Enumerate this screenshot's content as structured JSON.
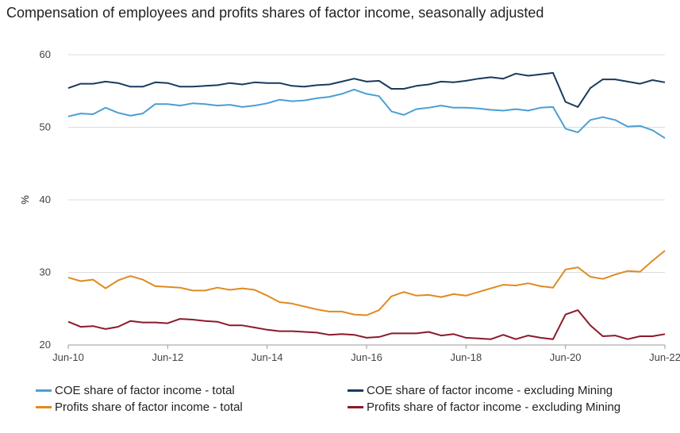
{
  "chart_data": {
    "type": "line",
    "title": "Compensation of employees and profits shares of factor income, seasonally adjusted",
    "ylabel": "%",
    "xlabel": "",
    "ylim": [
      20,
      60
    ],
    "yticks": [
      20,
      30,
      40,
      50,
      60
    ],
    "x_start": 2010.42,
    "x_step": 0.25,
    "xlim": [
      2010.42,
      2022.42
    ],
    "xticks": [
      {
        "label": "Jun-10",
        "x": 2010.42
      },
      {
        "label": "Jun-12",
        "x": 2012.42
      },
      {
        "label": "Jun-14",
        "x": 2014.42
      },
      {
        "label": "Jun-16",
        "x": 2016.42
      },
      {
        "label": "Jun-18",
        "x": 2018.42
      },
      {
        "label": "Jun-20",
        "x": 2020.42
      },
      {
        "label": "Jun-22",
        "x": 2022.42
      }
    ],
    "grid": "horizontal",
    "series": [
      {
        "name": "COE share of factor income - total",
        "color": "#4a9fd4",
        "values": [
          51.5,
          51.9,
          51.8,
          52.7,
          52.0,
          51.6,
          51.9,
          53.2,
          53.2,
          53.0,
          53.3,
          53.2,
          53.0,
          53.1,
          52.8,
          53.0,
          53.3,
          53.8,
          53.6,
          53.7,
          54.0,
          54.2,
          54.6,
          55.2,
          54.6,
          54.3,
          52.2,
          51.7,
          52.5,
          52.7,
          53.0,
          52.7,
          52.7,
          52.6,
          52.4,
          52.3,
          52.5,
          52.3,
          52.7,
          52.8,
          49.8,
          49.3,
          51.0,
          51.4,
          51.0,
          50.1,
          50.2,
          49.6,
          48.5
        ]
      },
      {
        "name": "COE share of factor income - excluding Mining",
        "color": "#1a3a5c",
        "values": [
          55.4,
          56.0,
          56.0,
          56.3,
          56.1,
          55.6,
          55.6,
          56.2,
          56.1,
          55.6,
          55.6,
          55.7,
          55.8,
          56.1,
          55.9,
          56.2,
          56.1,
          56.1,
          55.7,
          55.6,
          55.8,
          55.9,
          56.3,
          56.7,
          56.3,
          56.4,
          55.3,
          55.3,
          55.7,
          55.9,
          56.3,
          56.2,
          56.4,
          56.7,
          56.9,
          56.7,
          57.4,
          57.1,
          57.3,
          57.5,
          53.5,
          52.8,
          55.4,
          56.6,
          56.6,
          56.3,
          56.0,
          56.5,
          56.2
        ]
      },
      {
        "name": "Profits share of factor income - total",
        "color": "#e08a20",
        "values": [
          29.3,
          28.8,
          29.0,
          27.8,
          28.9,
          29.5,
          29.0,
          28.1,
          28.0,
          27.9,
          27.5,
          27.5,
          27.9,
          27.6,
          27.8,
          27.6,
          26.8,
          25.9,
          25.7,
          25.3,
          24.9,
          24.6,
          24.6,
          24.2,
          24.1,
          24.8,
          26.7,
          27.3,
          26.8,
          26.9,
          26.6,
          27.0,
          26.8,
          27.3,
          27.8,
          28.3,
          28.2,
          28.5,
          28.1,
          27.9,
          30.4,
          30.7,
          29.4,
          29.1,
          29.7,
          30.2,
          30.1,
          31.6,
          33.0
        ]
      },
      {
        "name": "Profits share of factor income - excluding Mining",
        "color": "#8b1a2a",
        "values": [
          23.2,
          22.5,
          22.6,
          22.2,
          22.5,
          23.3,
          23.1,
          23.1,
          23.0,
          23.6,
          23.5,
          23.3,
          23.2,
          22.7,
          22.7,
          22.4,
          22.1,
          21.9,
          21.9,
          21.8,
          21.7,
          21.4,
          21.5,
          21.4,
          21.0,
          21.1,
          21.6,
          21.6,
          21.6,
          21.8,
          21.3,
          21.5,
          21.0,
          20.9,
          20.8,
          21.4,
          20.8,
          21.3,
          21.0,
          20.8,
          24.2,
          24.8,
          22.7,
          21.2,
          21.3,
          20.8,
          21.2,
          21.2,
          21.5
        ]
      }
    ],
    "legend_position": "bottom"
  }
}
